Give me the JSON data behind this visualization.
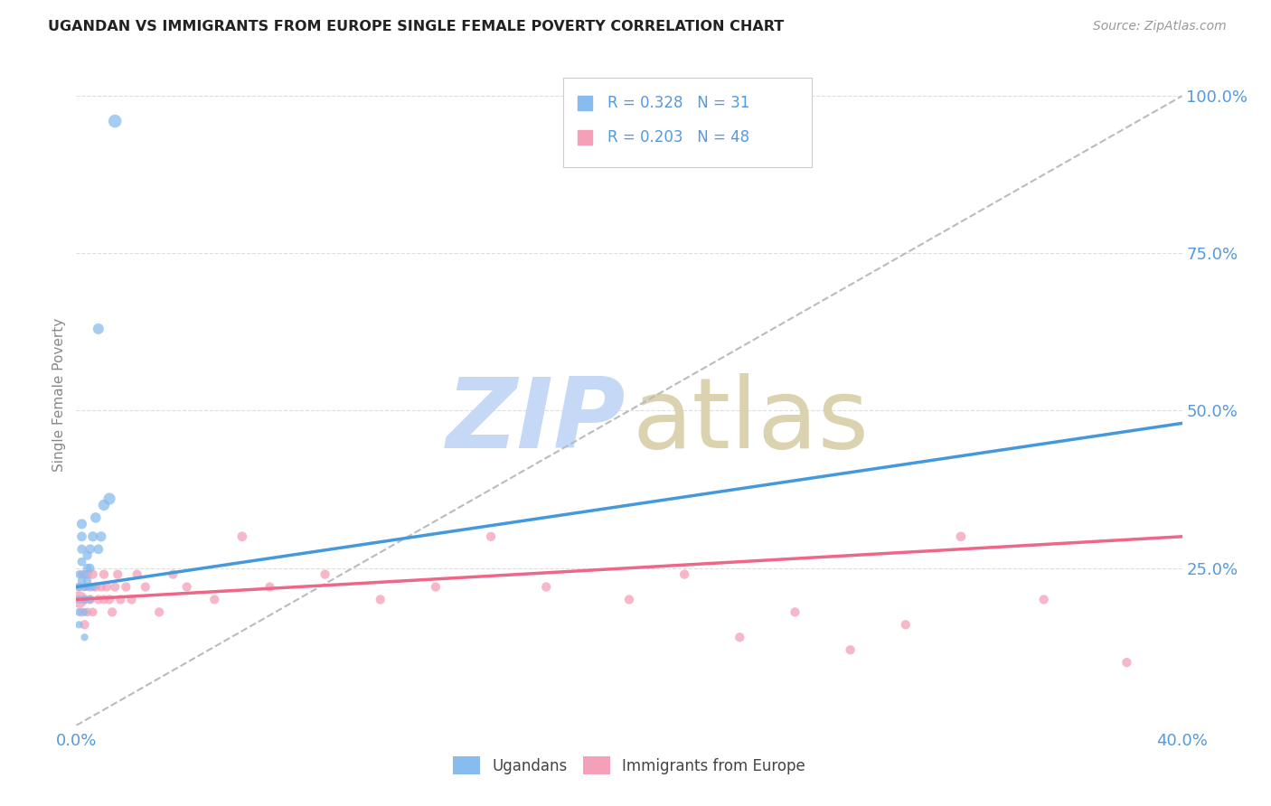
{
  "title": "UGANDAN VS IMMIGRANTS FROM EUROPE SINGLE FEMALE POVERTY CORRELATION CHART",
  "source": "Source: ZipAtlas.com",
  "ylabel": "Single Female Poverty",
  "xlim": [
    0.0,
    0.4
  ],
  "ylim": [
    0.0,
    1.05
  ],
  "R_blue": 0.328,
  "N_blue": 31,
  "R_pink": 0.203,
  "N_pink": 48,
  "color_blue": "#88bbee",
  "color_pink": "#f4a0b8",
  "color_blue_line": "#4499dd",
  "color_pink_line": "#ee6688",
  "color_axis_text": "#5599dd",
  "color_title": "#222222",
  "color_source": "#999999",
  "color_ylabel": "#888888",
  "watermark_zip_color": "#c5d8f5",
  "watermark_atlas_color": "#d8cfa8",
  "ugandan_x": [
    0.001,
    0.001,
    0.001,
    0.001,
    0.001,
    0.002,
    0.002,
    0.002,
    0.002,
    0.002,
    0.003,
    0.003,
    0.003,
    0.003,
    0.003,
    0.004,
    0.004,
    0.004,
    0.004,
    0.005,
    0.005,
    0.005,
    0.006,
    0.006,
    0.007,
    0.008,
    0.008,
    0.009,
    0.01,
    0.012,
    0.014
  ],
  "ugandan_y": [
    0.22,
    0.24,
    0.2,
    0.18,
    0.16,
    0.23,
    0.26,
    0.28,
    0.3,
    0.32,
    0.22,
    0.24,
    0.2,
    0.18,
    0.14,
    0.23,
    0.25,
    0.27,
    0.22,
    0.25,
    0.28,
    0.2,
    0.3,
    0.22,
    0.33,
    0.63,
    0.28,
    0.3,
    0.35,
    0.36,
    0.96
  ],
  "ugandan_size": [
    40,
    40,
    40,
    40,
    35,
    45,
    50,
    55,
    60,
    65,
    40,
    45,
    40,
    35,
    35,
    45,
    50,
    55,
    40,
    50,
    60,
    40,
    65,
    45,
    70,
    75,
    60,
    65,
    80,
    90,
    110
  ],
  "europe_x": [
    0.001,
    0.001,
    0.002,
    0.002,
    0.003,
    0.003,
    0.003,
    0.004,
    0.004,
    0.005,
    0.005,
    0.006,
    0.006,
    0.007,
    0.008,
    0.009,
    0.01,
    0.01,
    0.011,
    0.012,
    0.013,
    0.014,
    0.015,
    0.016,
    0.018,
    0.02,
    0.022,
    0.025,
    0.03,
    0.035,
    0.04,
    0.05,
    0.06,
    0.07,
    0.09,
    0.11,
    0.13,
    0.15,
    0.17,
    0.2,
    0.22,
    0.24,
    0.26,
    0.28,
    0.3,
    0.32,
    0.35,
    0.38
  ],
  "europe_y": [
    0.2,
    0.22,
    0.18,
    0.24,
    0.16,
    0.2,
    0.22,
    0.18,
    0.24,
    0.2,
    0.22,
    0.18,
    0.24,
    0.22,
    0.2,
    0.22,
    0.2,
    0.24,
    0.22,
    0.2,
    0.18,
    0.22,
    0.24,
    0.2,
    0.22,
    0.2,
    0.24,
    0.22,
    0.18,
    0.24,
    0.22,
    0.2,
    0.3,
    0.22,
    0.24,
    0.2,
    0.22,
    0.3,
    0.22,
    0.2,
    0.24,
    0.14,
    0.18,
    0.12,
    0.16,
    0.3,
    0.2,
    0.1
  ],
  "europe_size": [
    180,
    50,
    55,
    50,
    55,
    55,
    50,
    50,
    55,
    55,
    55,
    50,
    55,
    55,
    55,
    55,
    55,
    55,
    55,
    55,
    55,
    55,
    55,
    55,
    55,
    55,
    55,
    55,
    55,
    55,
    55,
    55,
    60,
    55,
    55,
    55,
    55,
    55,
    55,
    55,
    55,
    55,
    55,
    55,
    55,
    60,
    55,
    55
  ],
  "blue_line_x": [
    0.0,
    0.4
  ],
  "blue_line_y": [
    0.22,
    0.48
  ],
  "pink_line_x": [
    0.0,
    0.4
  ],
  "pink_line_y": [
    0.2,
    0.3
  ],
  "diag_line_x": [
    0.0,
    0.4
  ],
  "diag_line_y": [
    0.0,
    1.0
  ]
}
